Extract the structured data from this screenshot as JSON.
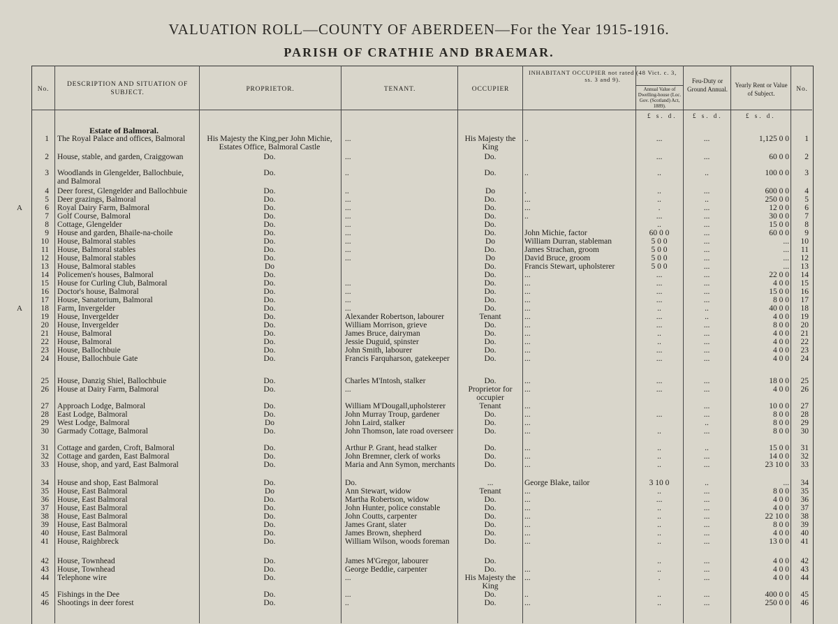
{
  "title": "VALUATION ROLL—COUNTY OF ABERDEEN—For the Year 1915-1916.",
  "subtitle": "PARISH OF CRATHIE AND BRAEMAR.",
  "headers": {
    "no": "No.",
    "description": "DESCRIPTION AND SITUATION OF SUBJECT.",
    "proprietor": "PROPRIETOR.",
    "tenant": "TENANT.",
    "occupier": "OCCUPIER",
    "inhabitant": "INHABITANT OCCUPIER not rated (48 Vict. c. 3, ss. 3 and 9).",
    "annual_value": "Annual Value of Dwelling-house (Loc. Gov. (Scotland) Act, 1889).",
    "feu_duty": "Feu-Duty or Ground Annual.",
    "yearly_rent": "Yearly Rent or Value of Subject.",
    "no_right": "No."
  },
  "currency": "£ s. d.",
  "estate_heading": "Estate of Balmoral.",
  "rows": [
    {
      "no": "1",
      "desc": "The Royal Palace and offices, Balmoral",
      "prop": "His Majesty the King,per John Michie, Estates Office, Balmoral Castle",
      "tenant": "...",
      "occ": "His Majesty the King",
      "inhab": "..",
      "annual": "...",
      "feu": "...",
      "rent": "1,125  0  0",
      "no2": "1"
    },
    {
      "no": "2",
      "desc": "House, stable, and garden, Craiggowan",
      "prop": "Do.",
      "tenant": "...",
      "occ": "Do.",
      "inhab": "",
      "annual": "...",
      "feu": "...",
      "rent": "60  0  0",
      "no2": "2"
    },
    {
      "no": "3",
      "desc": "Woodlands in Glengelder, Ballochbuie, and Balmoral",
      "prop": "Do.",
      "tenant": "..",
      "occ": "Do.",
      "inhab": "..",
      "annual": "..",
      "feu": "..",
      "rent": "100  0  0",
      "no2": "3"
    },
    {
      "no": "4",
      "desc": "Deer forest, Glengelder and Ballochbuie",
      "prop": "Do.",
      "tenant": "..",
      "occ": "Do",
      "inhab": ".",
      "annual": "..",
      "feu": "...",
      "rent": "600  0  0",
      "no2": "4"
    },
    {
      "no": "5",
      "desc": "Deer grazings, Balmoral",
      "prop": "Do.",
      "tenant": "...",
      "occ": "Do.",
      "inhab": "...",
      "annual": "..",
      "feu": "..",
      "rent": "250  0  0",
      "no2": "5"
    },
    {
      "no": "6",
      "desc": "Royal Dairy Farm, Balmoral",
      "prop": "Do.",
      "tenant": "...",
      "occ": "Do.",
      "inhab": "...",
      "annual": ".",
      "feu": "...",
      "rent": "12  0  0",
      "no2": "6",
      "mark": "A"
    },
    {
      "no": "7",
      "desc": "Golf Course, Balmoral",
      "prop": "Do.",
      "tenant": "...",
      "occ": "Do.",
      "inhab": "..",
      "annual": "...",
      "feu": "...",
      "rent": "30  0  0",
      "no2": "7"
    },
    {
      "no": "8",
      "desc": "Cottage, Glengelder",
      "prop": "Do.",
      "tenant": "...",
      "occ": "Do.",
      "inhab": "",
      "annual": "..",
      "feu": "...",
      "rent": "15  0  0",
      "no2": "8"
    },
    {
      "no": "9",
      "desc": "House and garden, Bhaile-na-choile",
      "prop": "Do.",
      "tenant": "...",
      "occ": "Do.",
      "inhab": "John Michie, factor",
      "annual": "60  0  0",
      "feu": "...",
      "rent": "60  0  0",
      "no2": "9"
    },
    {
      "no": "10",
      "desc": "House, Balmoral stables",
      "prop": "Do.",
      "tenant": "...",
      "occ": "Do",
      "inhab": "William Durran, stableman",
      "annual": "5  0  0",
      "feu": "...",
      "rent": "...",
      "no2": "10"
    },
    {
      "no": "11",
      "desc": "House, Balmoral stables",
      "prop": "Do.",
      "tenant": "...",
      "occ": "Do.",
      "inhab": "James Strachan, groom",
      "annual": "5  0  0",
      "feu": "...",
      "rent": "...",
      "no2": "11"
    },
    {
      "no": "12",
      "desc": "House, Balmoral stables",
      "prop": "Do.",
      "tenant": "...",
      "occ": "Do",
      "inhab": "David Bruce, groom",
      "annual": "5  0  0",
      "feu": "...",
      "rent": "...",
      "no2": "12"
    },
    {
      "no": "13",
      "desc": "House, Balmoral stables",
      "prop": "Do",
      "tenant": "",
      "occ": "Do.",
      "inhab": "Francis Stewart, upholsterer",
      "annual": "5  0  0",
      "feu": "...",
      "rent": "...",
      "no2": "13"
    },
    {
      "no": "14",
      "desc": "Policemen's houses, Balmoral",
      "prop": "Do.",
      "tenant": "",
      "occ": "Do.",
      "inhab": "...",
      "annual": "...",
      "feu": "...",
      "rent": "22  0  0",
      "no2": "14"
    },
    {
      "no": "15",
      "desc": "House for Curling Club, Balmoral",
      "prop": "Do.",
      "tenant": "...",
      "occ": "Do.",
      "inhab": "...",
      "annual": "...",
      "feu": "...",
      "rent": "4  0  0",
      "no2": "15"
    },
    {
      "no": "16",
      "desc": "Doctor's house, Balmoral",
      "prop": "Do.",
      "tenant": "...",
      "occ": "Do.",
      "inhab": "...",
      "annual": "...",
      "feu": "...",
      "rent": "15  0  0",
      "no2": "16"
    },
    {
      "no": "17",
      "desc": "House, Sanatorium, Balmoral",
      "prop": "Do.",
      "tenant": "...",
      "occ": "Do.",
      "inhab": "...",
      "annual": "...",
      "feu": "...",
      "rent": "8  0  0",
      "no2": "17"
    },
    {
      "no": "18",
      "desc": "Farm, Invergelder",
      "prop": "Do.",
      "tenant": "...",
      "occ": "Do.",
      "inhab": "...",
      "annual": "..",
      "feu": "..",
      "rent": "40  0  0",
      "no2": "18",
      "mark": "A"
    },
    {
      "no": "19",
      "desc": "House, Invergelder",
      "prop": "Do.",
      "tenant": "Alexander Robertson, labourer",
      "occ": "Tenant",
      "inhab": "...",
      "annual": "...",
      "feu": "..",
      "rent": "4  0  0",
      "no2": "19"
    },
    {
      "no": "20",
      "desc": "House, Invergelder",
      "prop": "Do.",
      "tenant": "William Morrison, grieve",
      "occ": "Do.",
      "inhab": "...",
      "annual": "...",
      "feu": "...",
      "rent": "8  0  0",
      "no2": "20"
    },
    {
      "no": "21",
      "desc": "House, Balmoral",
      "prop": "Do.",
      "tenant": "James Bruce, dairyman",
      "occ": "Do.",
      "inhab": "...",
      "annual": "..",
      "feu": "...",
      "rent": "4  0  0",
      "no2": "21"
    },
    {
      "no": "22",
      "desc": "House, Balmoral",
      "prop": "Do.",
      "tenant": "Jessie Duguid, spinster",
      "occ": "Do.",
      "inhab": "...",
      "annual": "..",
      "feu": "...",
      "rent": "4  0  0",
      "no2": "22"
    },
    {
      "no": "23",
      "desc": "House, Ballochbuie",
      "prop": "Do.",
      "tenant": "John Smith, labourer",
      "occ": "Do.",
      "inhab": "...",
      "annual": "...",
      "feu": "...",
      "rent": "4  0  0",
      "no2": "23"
    },
    {
      "no": "24",
      "desc": "House, Ballochbuie Gate",
      "prop": "Do.",
      "tenant": "Francis Farquharson, gatekeeper",
      "occ": "Do.",
      "inhab": "...",
      "annual": "...",
      "feu": "...",
      "rent": "4  0  0",
      "no2": "24"
    },
    {
      "no": "25",
      "desc": "House, Danzig Shiel, Ballochbuie",
      "prop": "Do.",
      "tenant": "Charles M'Intosh, stalker",
      "occ": "Do.",
      "inhab": "...",
      "annual": "...",
      "feu": "...",
      "rent": "18  0  0",
      "no2": "25"
    },
    {
      "no": "26",
      "desc": "House at Dairy Farm, Balmoral",
      "prop": "Do.",
      "tenant": "...",
      "occ": "Proprietor for occupier",
      "inhab": "...",
      "annual": "...",
      "feu": "...",
      "rent": "4  0  0",
      "no2": "26"
    },
    {
      "no": "27",
      "desc": "Approach Lodge, Balmoral",
      "prop": "Do.",
      "tenant": "William M'Dougall,upholsterer",
      "occ": "Tenant",
      "inhab": "...",
      "annual": "",
      "feu": "...",
      "rent": "10  0  0",
      "no2": "27"
    },
    {
      "no": "28",
      "desc": "East Lodge, Balmoral",
      "prop": "Do.",
      "tenant": "John Murray Troup, gardener",
      "occ": "Do.",
      "inhab": "...",
      "annual": "...",
      "feu": "...",
      "rent": "8  0  0",
      "no2": "28"
    },
    {
      "no": "29",
      "desc": "West Lodge, Balmoral",
      "prop": "Do",
      "tenant": "John Laird, stalker",
      "occ": "Do.",
      "inhab": "...",
      "annual": "",
      "feu": "..",
      "rent": "8  0  0",
      "no2": "29"
    },
    {
      "no": "30",
      "desc": "Garmady Cottage, Balmoral",
      "prop": "Do.",
      "tenant": "John Thomson, late road overseer",
      "occ": "Do.",
      "inhab": "...",
      "annual": "..",
      "feu": "...",
      "rent": "8  0  0",
      "no2": "30"
    },
    {
      "no": "31",
      "desc": "Cottage and garden, Croft, Balmoral",
      "prop": "Do.",
      "tenant": "Arthur P. Grant, head stalker",
      "occ": "Do.",
      "inhab": "...",
      "annual": "..",
      "feu": "..",
      "rent": "15  0  0",
      "no2": "31"
    },
    {
      "no": "32",
      "desc": "Cottage and garden, East Balmoral",
      "prop": "Do.",
      "tenant": "John Bremner, clerk of works",
      "occ": "Do.",
      "inhab": "...",
      "annual": "..",
      "feu": "...",
      "rent": "14  0  0",
      "no2": "32"
    },
    {
      "no": "33",
      "desc": "House, shop, and yard, East Balmoral",
      "prop": "Do.",
      "tenant": "Maria and Ann Symon, merchants",
      "occ": "Do.",
      "inhab": "...",
      "annual": "..",
      "feu": "...",
      "rent": "23 10  0",
      "no2": "33"
    },
    {
      "no": "34",
      "desc": "House and shop, East Balmoral",
      "prop": "Do.",
      "tenant": "Do.",
      "occ": "...",
      "inhab": "George Blake, tailor",
      "annual": "3 10  0",
      "feu": "..",
      "rent": "...",
      "no2": "34"
    },
    {
      "no": "35",
      "desc": "House, East Balmoral",
      "prop": "Do",
      "tenant": "Ann Stewart, widow",
      "occ": "Tenant",
      "inhab": "...",
      "annual": "..",
      "feu": "...",
      "rent": "8  0  0",
      "no2": "35"
    },
    {
      "no": "36",
      "desc": "House, East Balmoral",
      "prop": "Do.",
      "tenant": "Martha Robertson, widow",
      "occ": "Do.",
      "inhab": "...",
      "annual": "...",
      "feu": "...",
      "rent": "4  0  0",
      "no2": "36"
    },
    {
      "no": "37",
      "desc": "House, East Balmoral",
      "prop": "Do.",
      "tenant": "John Hunter, police constable",
      "occ": "Do.",
      "inhab": "...",
      "annual": "..",
      "feu": "...",
      "rent": "4  0  0",
      "no2": "37"
    },
    {
      "no": "38",
      "desc": "House, East Balmoral",
      "prop": "Do.",
      "tenant": "John Coutts, carpenter",
      "occ": "Do.",
      "inhab": "...",
      "annual": "..",
      "feu": "...",
      "rent": "22 10  0",
      "no2": "38"
    },
    {
      "no": "39",
      "desc": "House, East Balmoral",
      "prop": "Do.",
      "tenant": "James Grant, slater",
      "occ": "Do.",
      "inhab": "...",
      "annual": "..",
      "feu": "...",
      "rent": "8  0  0",
      "no2": "39"
    },
    {
      "no": "40",
      "desc": "House, East Balmoral",
      "prop": "Do.",
      "tenant": "James Brown, shepherd",
      "occ": "Do.",
      "inhab": "...",
      "annual": "..",
      "feu": "...",
      "rent": "4  0  0",
      "no2": "40"
    },
    {
      "no": "41",
      "desc": "House, Raighbreck",
      "prop": "Do.",
      "tenant": "William Wilson, woods foreman",
      "occ": "Do.",
      "inhab": "...",
      "annual": "..",
      "feu": "...",
      "rent": "13  0  0",
      "no2": "41"
    },
    {
      "no": "42",
      "desc": "House, Townhead",
      "prop": "Do.",
      "tenant": "James M'Gregor, labourer",
      "occ": "Do.",
      "inhab": "",
      "annual": "..",
      "feu": "...",
      "rent": "4  0  0",
      "no2": "42"
    },
    {
      "no": "43",
      "desc": "House, Townhead",
      "prop": "Do.",
      "tenant": "George Beddie, carpenter",
      "occ": "Do.",
      "inhab": "...",
      "annual": "..",
      "feu": "...",
      "rent": "4  0  0",
      "no2": "43"
    },
    {
      "no": "44",
      "desc": "Telephone wire",
      "prop": "Do.",
      "tenant": "...",
      "occ": "His Majesty the King",
      "inhab": "...",
      "annual": ".",
      "feu": "...",
      "rent": "4  0  0",
      "no2": "44"
    },
    {
      "no": "45",
      "desc": "Fishings in the Dee",
      "prop": "Do.",
      "tenant": "...",
      "occ": "Do.",
      "inhab": "..",
      "annual": "..",
      "feu": "...",
      "rent": "400  0  0",
      "no2": "45"
    },
    {
      "no": "46",
      "desc": "Shootings in deer forest",
      "prop": "Do.",
      "tenant": "..",
      "occ": "Do.",
      "inhab": "...",
      "annual": "..",
      "feu": "...",
      "rent": "250  0  0",
      "no2": "46"
    }
  ]
}
